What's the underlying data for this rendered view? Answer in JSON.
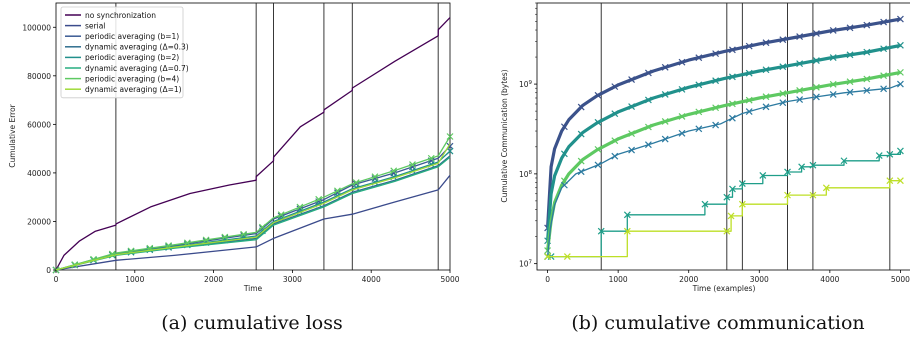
{
  "chart_data": [
    {
      "type": "line",
      "caption": "(a) cumulative loss",
      "xlabel": "Time",
      "ylabel": "Cumulative Error",
      "xlim": [
        0,
        5000
      ],
      "ylim": [
        0,
        110000
      ],
      "xticks": [
        0,
        1000,
        2000,
        3000,
        4000,
        5000
      ],
      "yticks": [
        0,
        20000,
        40000,
        60000,
        80000,
        100000
      ],
      "legend_position": "top-left",
      "event_lines": [
        760,
        2540,
        2760,
        3400,
        3760,
        4850
      ],
      "series": [
        {
          "name": "no synchronization",
          "color": "#440154",
          "x": [
            0,
            100,
            300,
            500,
            760,
            761,
            1200,
            1700,
            2200,
            2540,
            2541,
            2760,
            2761,
            3100,
            3400,
            3401,
            3760,
            3761,
            4300,
            4850,
            4851,
            5000
          ],
          "y": [
            0,
            6000,
            12000,
            16000,
            18500,
            19000,
            26000,
            31500,
            35000,
            37000,
            38500,
            45000,
            46500,
            59000,
            65000,
            66000,
            74000,
            75000,
            86000,
            96500,
            99000,
            104000
          ]
        },
        {
          "name": "serial",
          "color": "#3b4b8c",
          "x": [
            0,
            760,
            1500,
            2540,
            2760,
            3400,
            3760,
            4300,
            4850,
            5000
          ],
          "y": [
            0,
            4000,
            6000,
            9500,
            13000,
            21000,
            23000,
            28000,
            33000,
            39000
          ]
        },
        {
          "name": "periodic averaging (b=1)",
          "color": "#3a5a93",
          "marker": "x",
          "x": [
            0,
            760,
            1500,
            2540,
            2760,
            3400,
            3760,
            4300,
            4850,
            5000
          ],
          "y": [
            0,
            6800,
            10000,
            15000,
            21000,
            29000,
            35000,
            40000,
            46000,
            51000
          ]
        },
        {
          "name": "dynamic averaging (Δ=0.3)",
          "color": "#2f6e8e",
          "x": [
            0,
            760,
            1500,
            2540,
            2760,
            3400,
            3760,
            4300,
            4850,
            5000
          ],
          "y": [
            0,
            6200,
            9200,
            13000,
            19000,
            26500,
            32000,
            37000,
            43000,
            47000
          ]
        },
        {
          "name": "periodic averaging (b=2)",
          "color": "#21908c",
          "marker": "x",
          "x": [
            0,
            760,
            1500,
            2540,
            2760,
            3400,
            3760,
            4300,
            4850,
            5000
          ],
          "y": [
            0,
            6500,
            9600,
            14000,
            20000,
            28000,
            33500,
            38500,
            44500,
            49000
          ]
        },
        {
          "name": "dynamic averaging (Δ=0.7)",
          "color": "#27ad81",
          "x": [
            0,
            760,
            1500,
            2540,
            2760,
            3400,
            3760,
            4300,
            4850,
            5000
          ],
          "y": [
            0,
            6000,
            9000,
            12500,
            18500,
            26000,
            31500,
            36500,
            42500,
            46500
          ]
        },
        {
          "name": "periodic averaging (b=4)",
          "color": "#5ec962",
          "marker": "x",
          "x": [
            0,
            760,
            1500,
            2540,
            2760,
            3400,
            3760,
            4300,
            4850,
            5000
          ],
          "y": [
            0,
            7000,
            10400,
            15500,
            21500,
            30000,
            35500,
            41000,
            47000,
            55000
          ]
        },
        {
          "name": "dynamic averaging (Δ=1)",
          "color": "#a0da39",
          "x": [
            0,
            760,
            1500,
            2540,
            2760,
            3400,
            3760,
            4300,
            4850,
            5000
          ],
          "y": [
            0,
            6300,
            9400,
            13500,
            19500,
            27500,
            33000,
            38000,
            44000,
            52000
          ]
        }
      ]
    },
    {
      "type": "line",
      "caption": "(b) cumulative communication",
      "xlabel": "Time (examples)",
      "ylabel": "Cumulative Communication (bytes)",
      "xlim": [
        -150,
        5150
      ],
      "ylim": [
        8500000,
        8000000000
      ],
      "yscale": "log",
      "xticks": [
        0,
        1000,
        2000,
        3000,
        4000,
        5000
      ],
      "yticks": [
        {
          "value": 10000000,
          "base": "10",
          "exp": "7"
        },
        {
          "value": 100000000,
          "base": "10",
          "exp": "8"
        },
        {
          "value": 1000000000,
          "base": "10",
          "exp": "9"
        }
      ],
      "event_lines": [
        760,
        2540,
        2760,
        3400,
        3760,
        4850
      ],
      "series": [
        {
          "name": "periodic averaging (b=1)",
          "color": "#3b528b",
          "marker": "x",
          "x": [
            0,
            50,
            100,
            200,
            300,
            500,
            700,
            1000,
            1500,
            2000,
            2500,
            3000,
            3500,
            4000,
            4500,
            5000
          ],
          "y": [
            25000000,
            120000000,
            190000000,
            300000000,
            400000000,
            580000000,
            740000000,
            980000000,
            1400000000,
            1850000000,
            2300000000,
            2800000000,
            3300000000,
            3900000000,
            4500000000,
            5300000000
          ]
        },
        {
          "name": "periodic averaging (b=2)",
          "color": "#21918c",
          "marker": "x",
          "x": [
            0,
            50,
            100,
            200,
            300,
            500,
            700,
            1000,
            1500,
            2000,
            2500,
            3000,
            3500,
            4000,
            4500,
            5000
          ],
          "y": [
            18000000,
            60000000,
            95000000,
            150000000,
            200000000,
            290000000,
            370000000,
            490000000,
            700000000,
            920000000,
            1150000000,
            1400000000,
            1650000000,
            1950000000,
            2250000000,
            2700000000
          ]
        },
        {
          "name": "periodic averaging (b=4)",
          "color": "#5ec962",
          "marker": "x",
          "x": [
            0,
            50,
            100,
            200,
            300,
            500,
            700,
            1000,
            1500,
            2000,
            2500,
            3000,
            3500,
            4000,
            4500,
            5000
          ],
          "y": [
            14000000,
            30000000,
            48000000,
            75000000,
            100000000,
            145000000,
            185000000,
            245000000,
            350000000,
            460000000,
            575000000,
            700000000,
            830000000,
            980000000,
            1130000000,
            1350000000
          ]
        },
        {
          "name": "dynamic averaging (Δ=0.3)",
          "color": "#2c7aa0",
          "marker": "x",
          "x": [
            0,
            40,
            100,
            200,
            400,
            760,
            1000,
            1500,
            2000,
            2450,
            2540,
            2760,
            3100,
            3400,
            3760,
            4200,
            4850,
            5000
          ],
          "y": [
            12000000,
            25000000,
            45000000,
            70000000,
            100000000,
            130000000,
            165000000,
            220000000,
            300000000,
            360000000,
            390000000,
            470000000,
            560000000,
            640000000,
            710000000,
            800000000,
            900000000,
            1000000000
          ]
        },
        {
          "name": "dynamic averaging (Δ=0.7)",
          "color": "#1f9e89",
          "marker": "x",
          "step": true,
          "x": [
            0,
            50,
            760,
            1130,
            2230,
            2540,
            2620,
            2760,
            3050,
            3400,
            3600,
            3760,
            4200,
            4700,
            4850,
            5000
          ],
          "y": [
            12000000,
            12000000,
            23000000,
            35000000,
            46000000,
            55000000,
            68000000,
            78000000,
            96000000,
            105000000,
            120000000,
            125000000,
            140000000,
            160000000,
            165000000,
            180000000
          ]
        },
        {
          "name": "dynamic averaging (Δ=1)",
          "color": "#bddf26",
          "marker": "x",
          "step": true,
          "x": [
            0,
            280,
            1130,
            2540,
            2600,
            2760,
            3400,
            3760,
            3950,
            4850,
            5000
          ],
          "y": [
            12000000,
            12000000,
            23000000,
            23000000,
            34000000,
            46000000,
            58000000,
            58000000,
            70000000,
            84000000,
            84000000
          ]
        }
      ]
    }
  ]
}
